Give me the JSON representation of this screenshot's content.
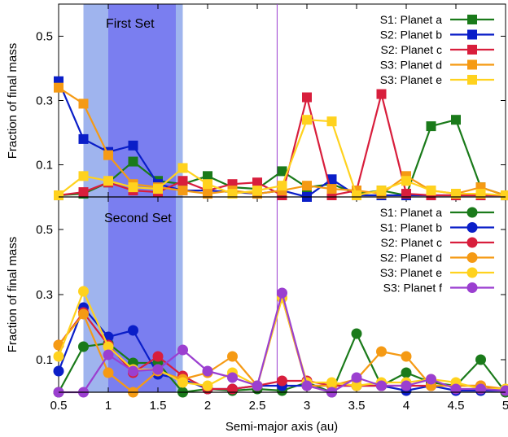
{
  "chart_data": {
    "type": "line",
    "xlabel": "Semi-major axis (au)",
    "ylabel": "Fraction of final mass",
    "xlim": [
      0.5,
      5
    ],
    "ylim": [
      0,
      0.6
    ],
    "x_ticks": [
      "0.5",
      "1",
      "1.5",
      "2",
      "2.5",
      "3",
      "3.5",
      "4",
      "4.5",
      "5"
    ],
    "y_ticks": [
      "0.1",
      "0.3",
      "0.5"
    ],
    "x_tick_values": [
      0.5,
      1,
      1.5,
      2,
      2.5,
      3,
      3.5,
      4,
      4.5,
      5
    ],
    "y_tick_values": [
      0.1,
      0.3,
      0.5
    ],
    "vertical_line_x": 2.7,
    "shaded_bands": [
      {
        "from": 0.75,
        "to": 1.75,
        "color": "#9fb4ee"
      },
      {
        "from": 1.0,
        "to": 1.68,
        "color": "#7a7ef0"
      }
    ],
    "x": [
      0.5,
      0.75,
      1.0,
      1.25,
      1.5,
      1.75,
      2.0,
      2.25,
      2.5,
      2.75,
      3.0,
      3.25,
      3.5,
      3.75,
      4.0,
      4.25,
      4.5,
      4.75,
      5.0
    ],
    "panels": [
      {
        "title": "First Set",
        "marker": "square",
        "legend_position": "top-right",
        "series": [
          {
            "name": "S1: Planet a",
            "color": "#1a7a1a",
            "values": [
              0.005,
              0.01,
              0.045,
              0.11,
              0.05,
              0.04,
              0.065,
              0.03,
              0.025,
              0.08,
              0.03,
              0.04,
              0.01,
              0.02,
              0.005,
              0.22,
              0.24,
              0.03,
              0.005
            ]
          },
          {
            "name": "S2: Planet b",
            "color": "#0a1ec8",
            "values": [
              0.36,
              0.18,
              0.14,
              0.16,
              0.04,
              0.02,
              0.02,
              0.015,
              0.01,
              0.02,
              0.0,
              0.055,
              0.005,
              0.005,
              0.005,
              0.005,
              0.005,
              0.005,
              0.005
            ]
          },
          {
            "name": "S2: Planet c",
            "color": "#d81e3c",
            "values": [
              0.005,
              0.015,
              0.045,
              0.02,
              0.015,
              0.05,
              0.02,
              0.04,
              0.045,
              0.005,
              0.31,
              0.005,
              0.02,
              0.32,
              0.01,
              0.005,
              0.005,
              0.005,
              0.005
            ]
          },
          {
            "name": "S3: Planet d",
            "color": "#f59a14",
            "values": [
              0.34,
              0.29,
              0.13,
              0.04,
              0.03,
              0.02,
              0.01,
              0.02,
              0.01,
              0.02,
              0.035,
              0.025,
              0.02,
              0.01,
              0.065,
              0.02,
              0.01,
              0.03,
              0.005
            ]
          },
          {
            "name": "S3: Planet e",
            "color": "#ffd21e",
            "values": [
              0.005,
              0.065,
              0.05,
              0.03,
              0.025,
              0.09,
              0.04,
              0.01,
              0.02,
              0.035,
              0.24,
              0.235,
              0.005,
              0.02,
              0.05,
              0.02,
              0.01,
              0.01,
              0.005
            ]
          }
        ]
      },
      {
        "title": "Second Set",
        "marker": "circle",
        "legend_position": "top-right",
        "series": [
          {
            "name": "S1: Planet a",
            "color": "#1a7a1a",
            "values": [
              0.0,
              0.14,
              0.15,
              0.09,
              0.09,
              0.0,
              0.01,
              0.005,
              0.01,
              0.005,
              0.03,
              0.0,
              0.18,
              0.02,
              0.06,
              0.03,
              0.02,
              0.1,
              0.0
            ]
          },
          {
            "name": "S1: Planet b",
            "color": "#0a1ec8",
            "values": [
              0.065,
              0.26,
              0.17,
              0.19,
              0.055,
              0.04,
              0.01,
              0.01,
              0.02,
              0.02,
              0.02,
              0.02,
              0.02,
              0.02,
              0.005,
              0.02,
              0.005,
              0.005,
              0.005
            ]
          },
          {
            "name": "S2: Planet c",
            "color": "#d81e3c",
            "values": [
              0.145,
              0.245,
              0.145,
              0.06,
              0.11,
              0.05,
              0.01,
              0.01,
              0.02,
              0.035,
              0.035,
              0.02,
              0.02,
              0.02,
              0.02,
              0.02,
              0.02,
              0.02,
              0.005
            ]
          },
          {
            "name": "S2: Planet d",
            "color": "#f59a14",
            "values": [
              0.145,
              0.24,
              0.06,
              0.0,
              0.065,
              0.04,
              0.06,
              0.11,
              0.02,
              0.29,
              0.02,
              0.02,
              0.04,
              0.125,
              0.11,
              0.02,
              0.02,
              0.02,
              0.01
            ]
          },
          {
            "name": "S3: Planet e",
            "color": "#ffd21e",
            "values": [
              0.11,
              0.31,
              0.14,
              0.07,
              0.07,
              0.03,
              0.02,
              0.06,
              0.02,
              0.29,
              0.03,
              0.03,
              0.02,
              0.03,
              0.03,
              0.04,
              0.03,
              0.01,
              0.01
            ]
          },
          {
            "name": "S3: Planet f",
            "color": "#9b3fd0",
            "values": [
              0.0,
              0.0,
              0.115,
              0.065,
              0.07,
              0.13,
              0.065,
              0.045,
              0.02,
              0.305,
              0.02,
              0.0,
              0.045,
              0.02,
              0.02,
              0.04,
              0.01,
              0.01,
              0.005
            ]
          }
        ]
      }
    ]
  }
}
